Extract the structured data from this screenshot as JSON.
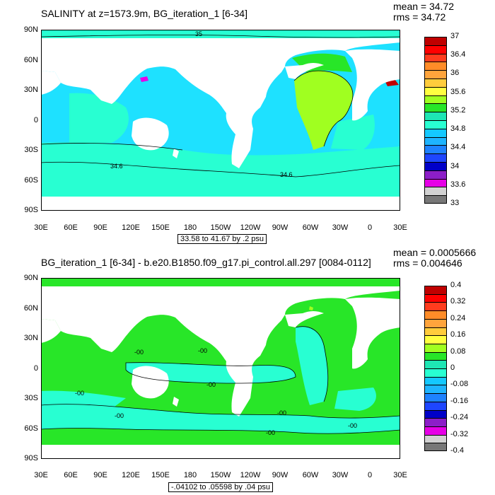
{
  "panels": [
    {
      "title": "SALINITY at z=1573.9m, BG_iteration_1 [6-34]",
      "mean": "mean = 34.72",
      "rms": "rms = 34.72",
      "range_text": "33.58 to 41.67 by .2 psu",
      "lat_labels": [
        "90N",
        "60N",
        "30N",
        "0",
        "30S",
        "60S",
        "90S"
      ],
      "lon_labels": [
        "30E",
        "60E",
        "90E",
        "120E",
        "150E",
        "180",
        "150W",
        "120W",
        "90W",
        "60W",
        "30W",
        "0",
        "30E"
      ],
      "colorbar_labels": [
        "37",
        "36.4",
        "36",
        "35.6",
        "35.2",
        "34.8",
        "34.4",
        "34",
        "33.6",
        "33"
      ],
      "colorbar_colors": [
        "#c00000",
        "#ff0000",
        "#ff3c1e",
        "#ff8c28",
        "#ffa43c",
        "#ffcc3c",
        "#ffff40",
        "#a0ff20",
        "#28e628",
        "#1ee6b4",
        "#28ffd2",
        "#14c8ff",
        "#1eb4ff",
        "#1e82ff",
        "#1e46ff",
        "#0000c8",
        "#8c1ec8",
        "#e600e6",
        "#d2d2d2",
        "#787878"
      ],
      "contour_labels": [
        "35",
        "34.6",
        "34.6"
      ],
      "base_color": "#1ee1ff"
    },
    {
      "title": "BG_iteration_1 [6-34] - b.e20.B1850.f09_g17.pi_control.all.297 [0084-0112]",
      "mean": "mean = 0.0005666",
      "rms": "rms = 0.004646",
      "range_text": "-.04102 to .05598 by .04 psu",
      "lat_labels": [
        "90N",
        "60N",
        "30N",
        "0",
        "30S",
        "60S",
        "90S"
      ],
      "lon_labels": [
        "30E",
        "60E",
        "90E",
        "120E",
        "150E",
        "180",
        "150W",
        "120W",
        "90W",
        "60W",
        "30W",
        "0",
        "30E"
      ],
      "colorbar_labels": [
        "0.4",
        "0.32",
        "0.24",
        "0.16",
        "0.08",
        "0",
        "-0.08",
        "-0.16",
        "-0.24",
        "-0.32",
        "-0.4"
      ],
      "colorbar_colors": [
        "#c00000",
        "#ff0000",
        "#ff3c1e",
        "#ff8c28",
        "#ffa43c",
        "#ffcc3c",
        "#ffff40",
        "#a0ff20",
        "#28e628",
        "#1ee6b4",
        "#28ffd2",
        "#14c8ff",
        "#1eb4ff",
        "#1e82ff",
        "#1e46ff",
        "#0000c8",
        "#8c1ec8",
        "#e600e6",
        "#d2d2d2",
        "#787878"
      ],
      "contour_labels": [
        "-00",
        "-00",
        "-00",
        "-00",
        "-00",
        "-00",
        "-00",
        "-00"
      ],
      "base_color": "#28e628"
    }
  ]
}
